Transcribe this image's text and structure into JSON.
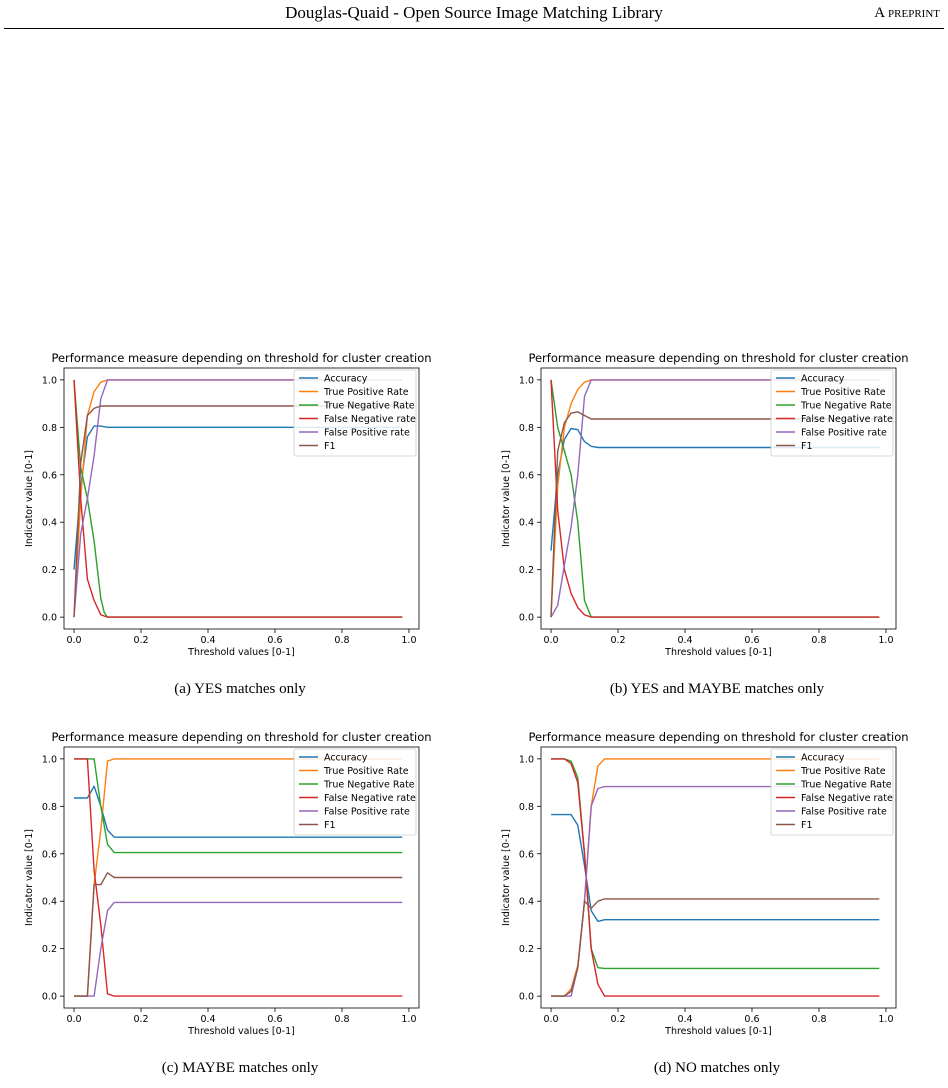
{
  "header": {
    "title": "Douglas-Quaid - Open Source Image Matching Library",
    "tag": "A preprint"
  },
  "legend_colors": {
    "Accuracy": "#1f77b4",
    "True Positive Rate": "#ff7f0e",
    "True Negative Rate": "#2ca02c",
    "False Negative rate": "#d62728",
    "False Positive rate": "#9467bd",
    "F1": "#8c564b"
  },
  "figures": [
    {
      "caption": "(a) YES matches only",
      "chart_data": {
        "type": "line",
        "title": "Performance measure depending on threshold for cluster creation",
        "xlabel": "Threshold values [0-1]",
        "ylabel": "Indicator value [0-1]",
        "xlim": [
          -0.03,
          1.03
        ],
        "ylim": [
          -0.05,
          1.05
        ],
        "xticks": [
          "0.0",
          "0.2",
          "0.4",
          "0.6",
          "0.8",
          "1.0"
        ],
        "yticks": [
          "0.0",
          "0.2",
          "0.4",
          "0.6",
          "0.8",
          "1.0"
        ],
        "legend_position": "upper right",
        "series": [
          {
            "name": "Accuracy",
            "x": [
              0,
              0.02,
              0.04,
              0.06,
              0.08,
              0.1,
              0.98
            ],
            "y": [
              0.2,
              0.55,
              0.76,
              0.805,
              0.805,
              0.8,
              0.8
            ]
          },
          {
            "name": "True Positive Rate",
            "x": [
              0,
              0.02,
              0.04,
              0.06,
              0.08,
              0.1,
              0.98
            ],
            "y": [
              0.0,
              0.5,
              0.85,
              0.95,
              0.99,
              1.0,
              1.0
            ]
          },
          {
            "name": "True Negative Rate",
            "x": [
              0,
              0.02,
              0.04,
              0.06,
              0.08,
              0.09,
              0.1,
              0.98
            ],
            "y": [
              1.0,
              0.63,
              0.5,
              0.32,
              0.08,
              0.02,
              0.0,
              0.0
            ]
          },
          {
            "name": "False Negative rate",
            "x": [
              0,
              0.02,
              0.04,
              0.06,
              0.08,
              0.1,
              0.98
            ],
            "y": [
              1.0,
              0.5,
              0.16,
              0.07,
              0.01,
              0.0,
              0.0
            ]
          },
          {
            "name": "False Positive rate",
            "x": [
              0,
              0.02,
              0.04,
              0.06,
              0.08,
              0.1,
              0.98
            ],
            "y": [
              0.0,
              0.35,
              0.5,
              0.68,
              0.92,
              1.0,
              1.0
            ]
          },
          {
            "name": "F1",
            "x": [
              0,
              0.02,
              0.04,
              0.06,
              0.08,
              0.1,
              0.98
            ],
            "y": [
              0.0,
              0.65,
              0.85,
              0.88,
              0.89,
              0.89,
              0.89
            ]
          }
        ]
      }
    },
    {
      "caption": "(b) YES and MAYBE matches only",
      "chart_data": {
        "type": "line",
        "title": "Performance measure depending on threshold for cluster creation",
        "xlabel": "Threshold values [0-1]",
        "ylabel": "Indicator value [0-1]",
        "xlim": [
          -0.03,
          1.03
        ],
        "ylim": [
          -0.05,
          1.05
        ],
        "xticks": [
          "0.0",
          "0.2",
          "0.4",
          "0.6",
          "0.8",
          "1.0"
        ],
        "yticks": [
          "0.0",
          "0.2",
          "0.4",
          "0.6",
          "0.8",
          "1.0"
        ],
        "legend_position": "upper right",
        "series": [
          {
            "name": "Accuracy",
            "x": [
              0,
              0.02,
              0.04,
              0.06,
              0.08,
              0.1,
              0.12,
              0.14,
              0.98
            ],
            "y": [
              0.28,
              0.6,
              0.75,
              0.795,
              0.79,
              0.74,
              0.72,
              0.715,
              0.715
            ]
          },
          {
            "name": "True Positive Rate",
            "x": [
              0,
              0.02,
              0.04,
              0.06,
              0.08,
              0.1,
              0.12,
              0.98
            ],
            "y": [
              0.0,
              0.55,
              0.8,
              0.9,
              0.96,
              0.99,
              1.0,
              1.0
            ]
          },
          {
            "name": "True Negative Rate",
            "x": [
              0,
              0.02,
              0.04,
              0.06,
              0.08,
              0.1,
              0.12,
              0.14,
              0.98
            ],
            "y": [
              1.0,
              0.8,
              0.7,
              0.6,
              0.4,
              0.07,
              0.0,
              0.0,
              0.0
            ]
          },
          {
            "name": "False Negative rate",
            "x": [
              0,
              0.02,
              0.04,
              0.06,
              0.08,
              0.1,
              0.12,
              0.98
            ],
            "y": [
              1.0,
              0.45,
              0.2,
              0.1,
              0.04,
              0.01,
              0.0,
              0.0
            ]
          },
          {
            "name": "False Positive rate",
            "x": [
              0,
              0.02,
              0.04,
              0.06,
              0.08,
              0.1,
              0.12,
              0.14,
              0.98
            ],
            "y": [
              0.0,
              0.05,
              0.22,
              0.38,
              0.6,
              0.93,
              1.0,
              1.0,
              1.0
            ]
          },
          {
            "name": "F1",
            "x": [
              0,
              0.02,
              0.04,
              0.06,
              0.08,
              0.1,
              0.12,
              0.14,
              0.98
            ],
            "y": [
              0.0,
              0.7,
              0.82,
              0.86,
              0.865,
              0.85,
              0.835,
              0.835,
              0.835
            ]
          }
        ]
      }
    },
    {
      "caption": "(c) MAYBE matches only",
      "chart_data": {
        "type": "line",
        "title": "Performance measure depending on threshold for cluster creation",
        "xlabel": "Threshold values [0-1]",
        "ylabel": "Indicator value [0-1]",
        "xlim": [
          -0.03,
          1.03
        ],
        "ylim": [
          -0.05,
          1.05
        ],
        "xticks": [
          "0.0",
          "0.2",
          "0.4",
          "0.6",
          "0.8",
          "1.0"
        ],
        "yticks": [
          "0.0",
          "0.2",
          "0.4",
          "0.6",
          "0.8",
          "1.0"
        ],
        "legend_position": "upper right",
        "series": [
          {
            "name": "Accuracy",
            "x": [
              0,
              0.04,
              0.06,
              0.08,
              0.1,
              0.12,
              0.98
            ],
            "y": [
              0.835,
              0.835,
              0.885,
              0.8,
              0.7,
              0.67,
              0.67
            ]
          },
          {
            "name": "True Positive Rate",
            "x": [
              0,
              0.04,
              0.06,
              0.08,
              0.1,
              0.12,
              0.98
            ],
            "y": [
              0.0,
              0.0,
              0.47,
              0.7,
              0.99,
              1.0,
              1.0
            ]
          },
          {
            "name": "True Negative Rate",
            "x": [
              0,
              0.04,
              0.06,
              0.08,
              0.1,
              0.12,
              0.14,
              0.98
            ],
            "y": [
              1.0,
              1.0,
              1.0,
              0.8,
              0.64,
              0.605,
              0.605,
              0.605
            ]
          },
          {
            "name": "False Negative rate",
            "x": [
              0,
              0.04,
              0.06,
              0.08,
              0.1,
              0.12,
              0.98
            ],
            "y": [
              1.0,
              1.0,
              0.53,
              0.3,
              0.01,
              0.0,
              0.0
            ]
          },
          {
            "name": "False Positive rate",
            "x": [
              0,
              0.04,
              0.06,
              0.08,
              0.1,
              0.12,
              0.14,
              0.98
            ],
            "y": [
              0.0,
              0.0,
              0.0,
              0.2,
              0.36,
              0.395,
              0.395,
              0.395
            ]
          },
          {
            "name": "F1",
            "x": [
              0,
              0.04,
              0.06,
              0.08,
              0.1,
              0.12,
              0.98
            ],
            "y": [
              0.0,
              0.0,
              0.47,
              0.47,
              0.52,
              0.5,
              0.5
            ]
          }
        ]
      }
    },
    {
      "caption": "(d) NO matches only",
      "chart_data": {
        "type": "line",
        "title": "Performance measure depending on threshold for cluster creation",
        "xlabel": "Threshold values [0-1]",
        "ylabel": "Indicator value [0-1]",
        "xlim": [
          -0.03,
          1.03
        ],
        "ylim": [
          -0.05,
          1.05
        ],
        "xticks": [
          "0.0",
          "0.2",
          "0.4",
          "0.6",
          "0.8",
          "1.0"
        ],
        "yticks": [
          "0.0",
          "0.2",
          "0.4",
          "0.6",
          "0.8",
          "1.0"
        ],
        "legend_position": "upper right",
        "series": [
          {
            "name": "Accuracy",
            "x": [
              0,
              0.04,
              0.06,
              0.08,
              0.1,
              0.12,
              0.14,
              0.16,
              0.98
            ],
            "y": [
              0.765,
              0.765,
              0.765,
              0.72,
              0.55,
              0.36,
              0.315,
              0.322,
              0.322
            ]
          },
          {
            "name": "True Positive Rate",
            "x": [
              0,
              0.04,
              0.06,
              0.08,
              0.1,
              0.12,
              0.14,
              0.16,
              0.98
            ],
            "y": [
              0.0,
              0.0,
              0.03,
              0.13,
              0.4,
              0.8,
              0.97,
              1.0,
              1.0
            ]
          },
          {
            "name": "True Negative Rate",
            "x": [
              0,
              0.04,
              0.06,
              0.08,
              0.1,
              0.12,
              0.14,
              0.16,
              0.98
            ],
            "y": [
              1.0,
              1.0,
              0.99,
              0.92,
              0.6,
              0.2,
              0.12,
              0.117,
              0.117
            ]
          },
          {
            "name": "False Negative rate",
            "x": [
              0,
              0.04,
              0.06,
              0.08,
              0.1,
              0.12,
              0.14,
              0.16,
              0.98
            ],
            "y": [
              1.0,
              1.0,
              0.98,
              0.9,
              0.6,
              0.2,
              0.05,
              0.0,
              0.0
            ]
          },
          {
            "name": "False Positive rate",
            "x": [
              0,
              0.04,
              0.06,
              0.08,
              0.1,
              0.12,
              0.14,
              0.16,
              0.98
            ],
            "y": [
              0.0,
              0.0,
              0.0,
              0.12,
              0.4,
              0.8,
              0.875,
              0.883,
              0.883
            ]
          },
          {
            "name": "F1",
            "x": [
              0,
              0.04,
              0.06,
              0.08,
              0.1,
              0.12,
              0.14,
              0.16,
              0.98
            ],
            "y": [
              0.0,
              0.0,
              0.02,
              0.12,
              0.4,
              0.37,
              0.4,
              0.41,
              0.41
            ]
          }
        ]
      }
    }
  ]
}
